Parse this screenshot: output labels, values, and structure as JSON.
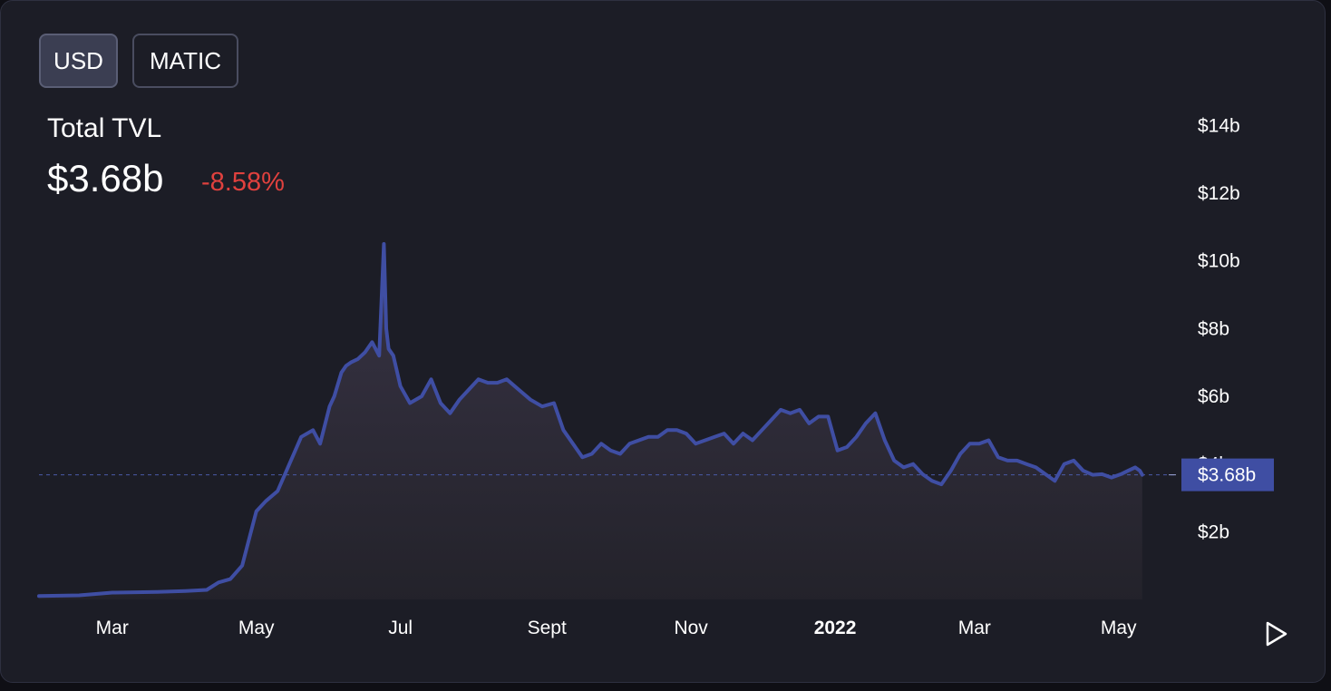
{
  "toggle": {
    "usd_label": "USD",
    "matic_label": "MATIC"
  },
  "metric": {
    "label": "Total TVL",
    "value": "$3.68b",
    "change": "-8.58%"
  },
  "colors": {
    "line": "#3f4ea3",
    "change_negative": "#e0413e",
    "current_tag": "#3f4ea3"
  },
  "chart_data": {
    "type": "area",
    "title": "",
    "xlabel": "",
    "ylabel": "",
    "ylim": [
      0,
      15
    ],
    "y_ticks": [
      {
        "label": "$14b",
        "value": 14
      },
      {
        "label": "$12b",
        "value": 12
      },
      {
        "label": "$10b",
        "value": 10
      },
      {
        "label": "$8b",
        "value": 8
      },
      {
        "label": "$6b",
        "value": 6
      },
      {
        "label": "$4b",
        "value": 4
      },
      {
        "label": "$2b",
        "value": 2
      }
    ],
    "x_ticks": [
      {
        "label": "Mar",
        "date": "2021-03-01",
        "bold": false
      },
      {
        "label": "May",
        "date": "2021-05-01",
        "bold": false
      },
      {
        "label": "Jul",
        "date": "2021-07-01",
        "bold": false
      },
      {
        "label": "Sept",
        "date": "2021-09-01",
        "bold": false
      },
      {
        "label": "Nov",
        "date": "2021-11-01",
        "bold": false
      },
      {
        "label": "2022",
        "date": "2022-01-01",
        "bold": true
      },
      {
        "label": "Mar",
        "date": "2022-03-01",
        "bold": false
      },
      {
        "label": "May",
        "date": "2022-05-01",
        "bold": false
      }
    ],
    "xlim": [
      "2021-01-29",
      "2022-05-13"
    ],
    "current": {
      "label": "$3.68b",
      "value": 3.68
    },
    "series": [
      {
        "x": [
          "2021-01-29",
          "2021-02-15",
          "2021-03-01",
          "2021-03-20",
          "2021-04-01",
          "2021-04-10",
          "2021-04-15",
          "2021-04-20",
          "2021-04-25",
          "2021-04-28",
          "2021-05-01",
          "2021-05-05",
          "2021-05-10",
          "2021-05-15",
          "2021-05-20",
          "2021-05-25",
          "2021-05-28",
          "2021-06-01",
          "2021-06-03",
          "2021-06-06",
          "2021-06-08",
          "2021-06-10",
          "2021-06-13",
          "2021-06-16",
          "2021-06-19",
          "2021-06-22",
          "2021-06-24",
          "2021-06-25",
          "2021-06-26",
          "2021-06-28",
          "2021-07-01",
          "2021-07-05",
          "2021-07-10",
          "2021-07-14",
          "2021-07-18",
          "2021-07-22",
          "2021-07-26",
          "2021-07-30",
          "2021-08-03",
          "2021-08-07",
          "2021-08-11",
          "2021-08-15",
          "2021-08-20",
          "2021-08-25",
          "2021-08-30",
          "2021-09-04",
          "2021-09-08",
          "2021-09-12",
          "2021-09-16",
          "2021-09-20",
          "2021-09-24",
          "2021-09-28",
          "2021-10-02",
          "2021-10-06",
          "2021-10-10",
          "2021-10-14",
          "2021-10-18",
          "2021-10-22",
          "2021-10-26",
          "2021-10-30",
          "2021-11-03",
          "2021-11-07",
          "2021-11-11",
          "2021-11-15",
          "2021-11-19",
          "2021-11-23",
          "2021-11-27",
          "2021-12-01",
          "2021-12-05",
          "2021-12-09",
          "2021-12-13",
          "2021-12-17",
          "2021-12-21",
          "2021-12-25",
          "2021-12-29",
          "2022-01-02",
          "2022-01-06",
          "2022-01-10",
          "2022-01-14",
          "2022-01-18",
          "2022-01-22",
          "2022-01-26",
          "2022-01-30",
          "2022-02-03",
          "2022-02-07",
          "2022-02-11",
          "2022-02-15",
          "2022-02-19",
          "2022-02-23",
          "2022-02-27",
          "2022-03-03",
          "2022-03-07",
          "2022-03-11",
          "2022-03-15",
          "2022-03-19",
          "2022-03-23",
          "2022-03-27",
          "2022-03-31",
          "2022-04-04",
          "2022-04-08",
          "2022-04-12",
          "2022-04-16",
          "2022-04-20",
          "2022-04-24",
          "2022-04-28",
          "2022-05-02",
          "2022-05-05",
          "2022-05-08",
          "2022-05-10",
          "2022-05-11"
        ],
        "y": [
          0.1,
          0.12,
          0.2,
          0.22,
          0.25,
          0.28,
          0.5,
          0.6,
          1.0,
          1.8,
          2.6,
          2.9,
          3.2,
          4.0,
          4.8,
          5.0,
          4.6,
          5.7,
          6.0,
          6.7,
          6.9,
          7.0,
          7.1,
          7.3,
          7.6,
          7.2,
          10.5,
          8.0,
          7.4,
          7.2,
          6.3,
          5.8,
          6.0,
          6.5,
          5.8,
          5.5,
          5.9,
          6.2,
          6.5,
          6.4,
          6.4,
          6.5,
          6.2,
          5.9,
          5.7,
          5.8,
          5.0,
          4.6,
          4.2,
          4.3,
          4.6,
          4.4,
          4.3,
          4.6,
          4.7,
          4.8,
          4.8,
          5.0,
          5.0,
          4.9,
          4.6,
          4.7,
          4.8,
          4.9,
          4.6,
          4.9,
          4.7,
          5.0,
          5.3,
          5.6,
          5.5,
          5.6,
          5.2,
          5.4,
          5.4,
          4.4,
          4.5,
          4.8,
          5.2,
          5.5,
          4.7,
          4.1,
          3.9,
          4.0,
          3.7,
          3.5,
          3.4,
          3.8,
          4.3,
          4.6,
          4.6,
          4.7,
          4.2,
          4.1,
          4.1,
          4.0,
          3.9,
          3.7,
          3.5,
          4.0,
          4.1,
          3.8,
          3.68,
          3.7,
          3.6,
          3.7,
          3.8,
          3.9,
          3.8,
          3.68
        ]
      }
    ]
  }
}
